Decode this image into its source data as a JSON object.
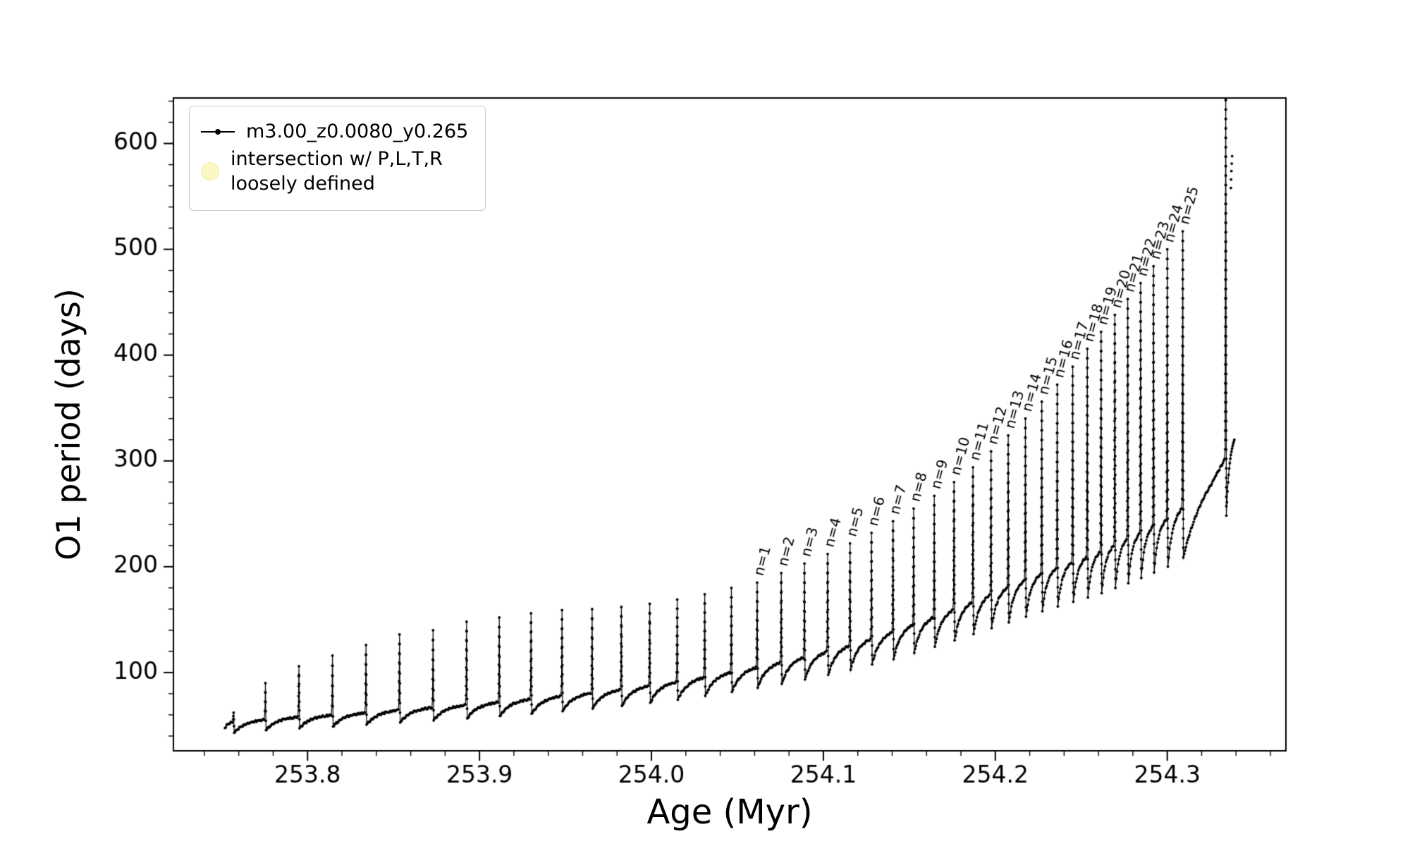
{
  "figure": {
    "background": "#ffffff",
    "axes_color": "#000000"
  },
  "legend": {
    "entries": [
      {
        "label": "m3.00_z0.0080_y0.265",
        "marker": "line-dot",
        "color": "#000000"
      },
      {
        "label": "intersection w/ P,L,T,R\nloosely defined",
        "marker": "pale-circle",
        "color": "#fbf7c2"
      }
    ]
  },
  "chart_data": {
    "type": "line",
    "title": "",
    "xlabel": "Age (Myr)",
    "ylabel": "O1 period (days)",
    "xlim": [
      253.722,
      254.369
    ],
    "ylim": [
      26,
      643
    ],
    "xticks": [
      253.8,
      253.9,
      254.0,
      254.1,
      254.2,
      254.3
    ],
    "xtick_labels": [
      "253.8",
      "253.9",
      "254.0",
      "254.1",
      "254.2",
      "254.3"
    ],
    "yticks": [
      100,
      200,
      300,
      400,
      500,
      600
    ],
    "ytick_labels": [
      "100",
      "200",
      "300",
      "400",
      "500",
      "600"
    ],
    "x_minor_step": 0.02,
    "y_minor_step": 20,
    "grid": false,
    "legend_position": "upper-left",
    "series": [
      {
        "name": "m3.00_z0.0080_y0.265",
        "color": "#000000",
        "style": "line-with-dots"
      }
    ],
    "annotation_prefix": "n=",
    "baseline_anchors": [
      [
        253.75,
        52
      ],
      [
        253.78,
        57
      ],
      [
        253.82,
        61
      ],
      [
        253.86,
        66
      ],
      [
        253.9,
        71
      ],
      [
        253.94,
        77
      ],
      [
        253.98,
        84
      ],
      [
        254.02,
        93
      ],
      [
        254.05,
        102
      ],
      [
        254.08,
        112
      ],
      [
        254.11,
        124
      ],
      [
        254.14,
        139
      ],
      [
        254.17,
        157
      ],
      [
        254.2,
        177
      ],
      [
        254.23,
        197
      ],
      [
        254.26,
        215
      ],
      [
        254.28,
        230
      ],
      [
        254.3,
        247
      ],
      [
        254.315,
        265
      ],
      [
        254.325,
        283
      ],
      [
        254.332,
        300
      ],
      [
        254.339,
        323
      ]
    ],
    "pulses": [
      {
        "x": 253.757,
        "peak": 62
      },
      {
        "x": 253.7755,
        "peak": 90
      },
      {
        "x": 253.795,
        "peak": 106
      },
      {
        "x": 253.8145,
        "peak": 116
      },
      {
        "x": 253.834,
        "peak": 126
      },
      {
        "x": 253.8535,
        "peak": 136
      },
      {
        "x": 253.873,
        "peak": 140
      },
      {
        "x": 253.8925,
        "peak": 148
      },
      {
        "x": 253.9115,
        "peak": 152
      },
      {
        "x": 253.93,
        "peak": 156
      },
      {
        "x": 253.948,
        "peak": 159
      },
      {
        "x": 253.9655,
        "peak": 160
      },
      {
        "x": 253.9825,
        "peak": 162
      },
      {
        "x": 253.999,
        "peak": 165
      },
      {
        "x": 254.015,
        "peak": 169
      },
      {
        "x": 254.031,
        "peak": 174
      },
      {
        "x": 254.0465,
        "peak": 180
      },
      {
        "x": 254.0615,
        "peak": 185,
        "n": 1
      },
      {
        "x": 254.0755,
        "peak": 194,
        "n": 2
      },
      {
        "x": 254.089,
        "peak": 203,
        "n": 3
      },
      {
        "x": 254.1025,
        "peak": 212,
        "n": 4
      },
      {
        "x": 254.1155,
        "peak": 222,
        "n": 5
      },
      {
        "x": 254.128,
        "peak": 232,
        "n": 6
      },
      {
        "x": 254.1405,
        "peak": 243,
        "n": 7
      },
      {
        "x": 254.1525,
        "peak": 255,
        "n": 8
      },
      {
        "x": 254.1645,
        "peak": 267,
        "n": 9
      },
      {
        "x": 254.176,
        "peak": 280,
        "n": 10
      },
      {
        "x": 254.187,
        "peak": 294,
        "n": 11
      },
      {
        "x": 254.1975,
        "peak": 309,
        "n": 12
      },
      {
        "x": 254.2075,
        "peak": 324,
        "n": 13
      },
      {
        "x": 254.2175,
        "peak": 340,
        "n": 14
      },
      {
        "x": 254.227,
        "peak": 356,
        "n": 15
      },
      {
        "x": 254.236,
        "peak": 372,
        "n": 16
      },
      {
        "x": 254.245,
        "peak": 389,
        "n": 17
      },
      {
        "x": 254.2535,
        "peak": 406,
        "n": 18
      },
      {
        "x": 254.2615,
        "peak": 422,
        "n": 19
      },
      {
        "x": 254.2695,
        "peak": 438,
        "n": 20
      },
      {
        "x": 254.277,
        "peak": 453,
        "n": 21
      },
      {
        "x": 254.2845,
        "peak": 468,
        "n": 22
      },
      {
        "x": 254.292,
        "peak": 484,
        "n": 23
      },
      {
        "x": 254.3,
        "peak": 500,
        "n": 24
      },
      {
        "x": 254.309,
        "peak": 517,
        "n": 25
      },
      {
        "x": 254.334,
        "peak": 650
      }
    ],
    "extra_points": [
      [
        254.337,
        558
      ],
      [
        254.3371,
        566
      ],
      [
        254.3373,
        574
      ],
      [
        254.3375,
        581
      ],
      [
        254.3377,
        588
      ]
    ]
  }
}
